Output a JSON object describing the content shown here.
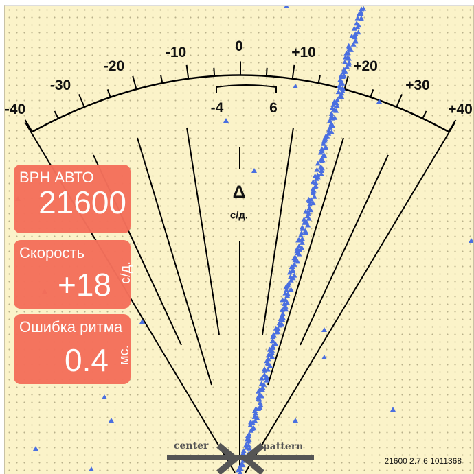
{
  "scale": {
    "labels": [
      "-40",
      "-30",
      "-20",
      "-10",
      "0",
      "+10",
      "+20",
      "+30",
      "+40"
    ],
    "bracket_left": "-4",
    "bracket_right": "6",
    "delta_symbol": "Δ",
    "delta_unit": "с/д."
  },
  "cards": {
    "beat_rate": {
      "title": "ВРН АВТО",
      "value": "21600"
    },
    "rate": {
      "title": "Скорость",
      "value": "+18",
      "unit": "с/д."
    },
    "beat_error": {
      "title": "Ошибка ритма",
      "value": "0.4",
      "unit": "мс."
    }
  },
  "center_label": "center",
  "pattern_label": "pattern",
  "version": "21600 2.7.6 1011368",
  "colors": {
    "background": "#fbf3c9",
    "card": "#f4705b",
    "trace": "#4a6fe0"
  }
}
